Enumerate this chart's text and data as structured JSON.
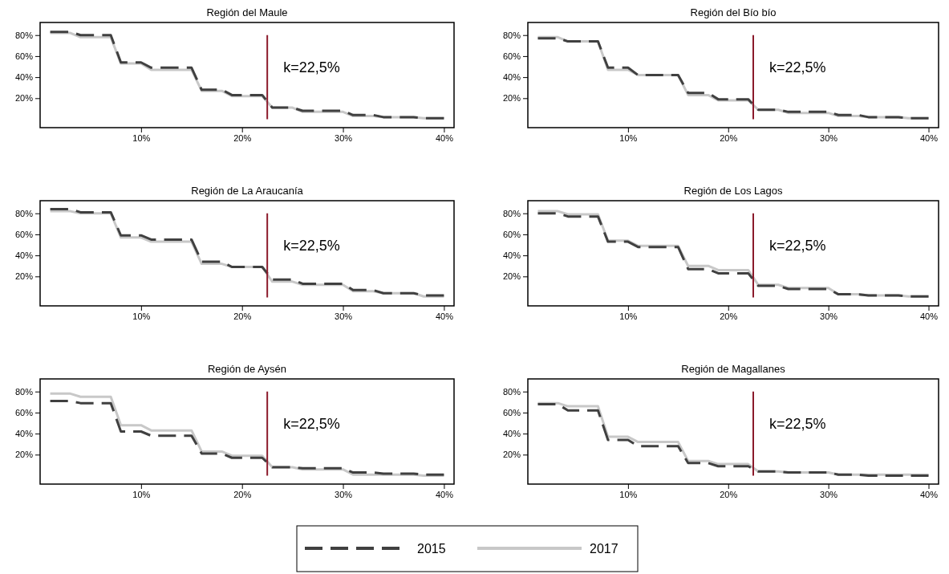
{
  "chart_data": [
    {
      "type": "line",
      "title": "Región del Maule",
      "x": [
        1,
        3,
        4,
        7,
        8,
        10,
        11,
        15,
        16,
        18,
        19,
        22,
        23,
        25,
        26,
        30,
        31,
        33,
        34,
        37,
        38,
        40
      ],
      "xlim": [
        0,
        41
      ],
      "ylim": [
        -8,
        92
      ],
      "xticks": [
        {
          "value": 10,
          "label": "10%"
        },
        {
          "value": 20,
          "label": "20%"
        },
        {
          "value": 30,
          "label": "30%"
        },
        {
          "value": 40,
          "label": "40%"
        }
      ],
      "yticks": [
        {
          "value": 20,
          "label": "20%"
        },
        {
          "value": 40,
          "label": "40%"
        },
        {
          "value": 60,
          "label": "60%"
        },
        {
          "value": 80,
          "label": "80%"
        }
      ],
      "series": [
        {
          "color": "#404040",
          "line_style": "dashed",
          "values": [
            83,
            83,
            80,
            80,
            54,
            54,
            49,
            49,
            28,
            28,
            23,
            23,
            11,
            11,
            8,
            8,
            4,
            4,
            2,
            2,
            1,
            1
          ]
        },
        {
          "color": "#c8c8c8",
          "line_style": "solid",
          "values": [
            82,
            82,
            78,
            78,
            53,
            53,
            47,
            47,
            27,
            27,
            22,
            22,
            11,
            11,
            7,
            7,
            3,
            3,
            2,
            2,
            1,
            1
          ]
        }
      ],
      "ref_lines": [
        {
          "axis": "x",
          "value": 22.5,
          "label": "k=22,5%",
          "color": "#8b1a2b"
        }
      ]
    },
    {
      "type": "line",
      "title": "Región del Bío bío",
      "x": [
        1,
        3,
        4,
        7,
        8,
        10,
        11,
        15,
        16,
        18,
        19,
        22,
        23,
        25,
        26,
        30,
        31,
        33,
        34,
        37,
        38,
        40
      ],
      "xlim": [
        0,
        41
      ],
      "ylim": [
        -8,
        92
      ],
      "xticks": [
        {
          "value": 10,
          "label": "10%"
        },
        {
          "value": 20,
          "label": "20%"
        },
        {
          "value": 30,
          "label": "30%"
        },
        {
          "value": 40,
          "label": "40%"
        }
      ],
      "yticks": [
        {
          "value": 20,
          "label": "20%"
        },
        {
          "value": 40,
          "label": "40%"
        },
        {
          "value": 60,
          "label": "60%"
        },
        {
          "value": 80,
          "label": "80%"
        }
      ],
      "series": [
        {
          "color": "#404040",
          "line_style": "dashed",
          "values": [
            77,
            77,
            74,
            74,
            49,
            49,
            42,
            42,
            25,
            25,
            19,
            19,
            9,
            9,
            7,
            7,
            4,
            4,
            2,
            2,
            1,
            1
          ]
        },
        {
          "color": "#c8c8c8",
          "line_style": "solid",
          "values": [
            78,
            78,
            74,
            74,
            47,
            47,
            42,
            42,
            23,
            23,
            18,
            18,
            9,
            9,
            6,
            6,
            3,
            3,
            2,
            2,
            1,
            1
          ]
        }
      ],
      "ref_lines": [
        {
          "axis": "x",
          "value": 22.5,
          "label": "k=22,5%",
          "color": "#8b1a2b"
        }
      ]
    },
    {
      "type": "line",
      "title": "Región de La Araucanía",
      "x": [
        1,
        3,
        4,
        7,
        8,
        10,
        11,
        15,
        16,
        18,
        19,
        22,
        23,
        25,
        26,
        30,
        31,
        33,
        34,
        37,
        38,
        40
      ],
      "xlim": [
        0,
        41
      ],
      "ylim": [
        -8,
        92
      ],
      "xticks": [
        {
          "value": 10,
          "label": "10%"
        },
        {
          "value": 20,
          "label": "20%"
        },
        {
          "value": 30,
          "label": "30%"
        },
        {
          "value": 40,
          "label": "40%"
        }
      ],
      "yticks": [
        {
          "value": 20,
          "label": "20%"
        },
        {
          "value": 40,
          "label": "40%"
        },
        {
          "value": 60,
          "label": "60%"
        },
        {
          "value": 80,
          "label": "80%"
        }
      ],
      "series": [
        {
          "color": "#404040",
          "line_style": "dashed",
          "values": [
            84,
            84,
            81,
            81,
            59,
            59,
            55,
            55,
            34,
            34,
            29,
            29,
            17,
            17,
            13,
            13,
            7,
            7,
            4,
            4,
            2,
            2
          ]
        },
        {
          "color": "#c8c8c8",
          "line_style": "solid",
          "values": [
            82,
            82,
            80,
            80,
            57,
            57,
            53,
            53,
            32,
            32,
            29,
            29,
            15,
            15,
            12,
            12,
            6,
            6,
            4,
            4,
            1,
            1
          ]
        }
      ],
      "ref_lines": [
        {
          "axis": "x",
          "value": 22.5,
          "label": "k=22,5%",
          "color": "#8b1a2b"
        }
      ]
    },
    {
      "type": "line",
      "title": "Región de Los Lagos",
      "x": [
        1,
        3,
        4,
        7,
        8,
        10,
        11,
        15,
        16,
        18,
        19,
        22,
        23,
        25,
        26,
        30,
        31,
        33,
        34,
        37,
        38,
        40
      ],
      "xlim": [
        0,
        41
      ],
      "ylim": [
        -8,
        92
      ],
      "xticks": [
        {
          "value": 10,
          "label": "10%"
        },
        {
          "value": 20,
          "label": "20%"
        },
        {
          "value": 30,
          "label": "30%"
        },
        {
          "value": 40,
          "label": "40%"
        }
      ],
      "yticks": [
        {
          "value": 20,
          "label": "20%"
        },
        {
          "value": 40,
          "label": "40%"
        },
        {
          "value": 60,
          "label": "60%"
        },
        {
          "value": 80,
          "label": "80%"
        }
      ],
      "series": [
        {
          "color": "#404040",
          "line_style": "dashed",
          "values": [
            80,
            80,
            77,
            77,
            53,
            53,
            48,
            48,
            27,
            27,
            23,
            23,
            11,
            11,
            8,
            8,
            3,
            3,
            2,
            2,
            1,
            1
          ]
        },
        {
          "color": "#c8c8c8",
          "line_style": "solid",
          "values": [
            82,
            82,
            79,
            79,
            54,
            54,
            49,
            49,
            30,
            30,
            26,
            26,
            12,
            12,
            9,
            9,
            3,
            3,
            2,
            2,
            1,
            1
          ]
        }
      ],
      "ref_lines": [
        {
          "axis": "x",
          "value": 22.5,
          "label": "k=22,5%",
          "color": "#8b1a2b"
        }
      ]
    },
    {
      "type": "line",
      "title": "Región de Aysén",
      "x": [
        1,
        3,
        4,
        7,
        8,
        10,
        11,
        15,
        16,
        18,
        19,
        22,
        23,
        25,
        26,
        30,
        31,
        33,
        34,
        37,
        38,
        40
      ],
      "xlim": [
        0,
        41
      ],
      "ylim": [
        -8,
        92
      ],
      "xticks": [
        {
          "value": 10,
          "label": "10%"
        },
        {
          "value": 20,
          "label": "20%"
        },
        {
          "value": 30,
          "label": "30%"
        },
        {
          "value": 40,
          "label": "40%"
        }
      ],
      "yticks": [
        {
          "value": 20,
          "label": "20%"
        },
        {
          "value": 40,
          "label": "40%"
        },
        {
          "value": 60,
          "label": "60%"
        },
        {
          "value": 80,
          "label": "80%"
        }
      ],
      "series": [
        {
          "color": "#404040",
          "line_style": "dashed",
          "values": [
            71,
            71,
            69,
            69,
            42,
            42,
            38,
            38,
            21,
            21,
            17,
            17,
            8,
            8,
            7,
            7,
            3,
            3,
            2,
            2,
            1,
            1
          ]
        },
        {
          "color": "#c8c8c8",
          "line_style": "solid",
          "values": [
            78,
            78,
            75,
            75,
            48,
            48,
            43,
            43,
            23,
            23,
            19,
            19,
            8,
            8,
            6,
            6,
            1,
            1,
            1,
            1,
            0,
            0
          ]
        }
      ],
      "ref_lines": [
        {
          "axis": "x",
          "value": 22.5,
          "label": "k=22,5%",
          "color": "#8b1a2b"
        }
      ]
    },
    {
      "type": "line",
      "title": "Región de Magallanes",
      "x": [
        1,
        3,
        4,
        7,
        8,
        10,
        11,
        15,
        16,
        18,
        19,
        22,
        23,
        25,
        26,
        30,
        31,
        33,
        34,
        37,
        38,
        40
      ],
      "xlim": [
        0,
        41
      ],
      "ylim": [
        -8,
        92
      ],
      "xticks": [
        {
          "value": 10,
          "label": "10%"
        },
        {
          "value": 20,
          "label": "20%"
        },
        {
          "value": 30,
          "label": "30%"
        },
        {
          "value": 40,
          "label": "40%"
        }
      ],
      "yticks": [
        {
          "value": 20,
          "label": "20%"
        },
        {
          "value": 40,
          "label": "40%"
        },
        {
          "value": 60,
          "label": "60%"
        },
        {
          "value": 80,
          "label": "80%"
        }
      ],
      "series": [
        {
          "name": "2015",
          "color": "#404040",
          "line_style": "dashed",
          "values": [
            68,
            68,
            62,
            62,
            34,
            34,
            28,
            28,
            12,
            12,
            9,
            9,
            4,
            4,
            3,
            3,
            1,
            1,
            0,
            0,
            0,
            0
          ]
        },
        {
          "name": "2017",
          "color": "#c8c8c8",
          "line_style": "solid",
          "values": [
            69,
            69,
            66,
            66,
            37,
            37,
            32,
            32,
            14,
            14,
            11,
            11,
            4,
            4,
            3,
            3,
            1,
            1,
            1,
            1,
            1,
            1
          ]
        }
      ],
      "ref_lines": [
        {
          "axis": "x",
          "value": 22.5,
          "label": "k=22,5%",
          "color": "#8b1a2b"
        }
      ],
      "legend": "bottom"
    }
  ]
}
